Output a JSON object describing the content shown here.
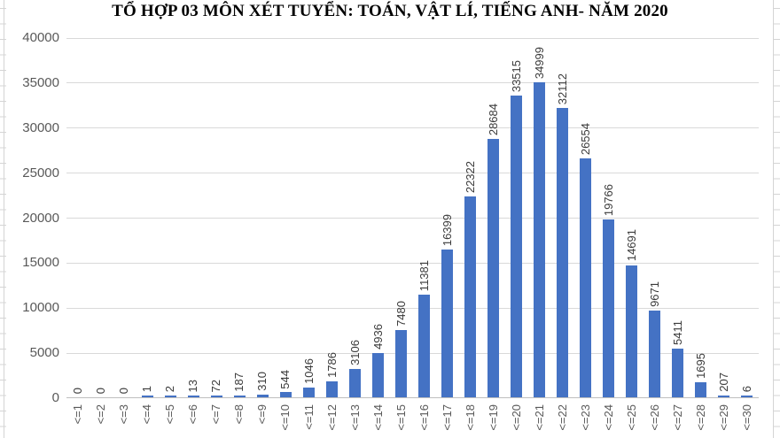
{
  "chart_data": {
    "type": "bar",
    "title": "TỔ HỢP 03 MÔN XÉT TUYỂN: TOÁN, VẬT LÍ, TIẾNG ANH- NĂM 2020",
    "categories": [
      "<=1",
      "<=2",
      "<=3",
      "<=4",
      "<=5",
      "<=6",
      "<=7",
      "<=8",
      "<=9",
      "<=10",
      "<=11",
      "<=12",
      "<=13",
      "<=14",
      "<=15",
      "<=16",
      "<=17",
      "<=18",
      "<=19",
      "<=20",
      "<=21",
      "<=22",
      "<=23",
      "<=24",
      "<=25",
      "<=26",
      "<=27",
      "<=28",
      "<=29",
      "<=30"
    ],
    "values": [
      0,
      0,
      0,
      1,
      2,
      13,
      72,
      187,
      310,
      544,
      1046,
      1786,
      3106,
      4936,
      7480,
      11381,
      16399,
      22322,
      28684,
      33515,
      34999,
      32112,
      26554,
      19766,
      14691,
      9671,
      5411,
      1695,
      207,
      6
    ],
    "xlabel": "",
    "ylabel": "",
    "ylim": [
      0,
      40000
    ],
    "y_ticks": [
      0,
      5000,
      10000,
      15000,
      20000,
      25000,
      30000,
      35000,
      40000
    ],
    "grid": true,
    "legend": false,
    "data_labels": true,
    "data_label_rotation": "vertical",
    "x_label_rotation": "vertical",
    "bar_color": "#4472C4",
    "gridline_color": "#d9d9d9",
    "axis_line_color": "#bfbfbf",
    "label_color": "#595959"
  }
}
